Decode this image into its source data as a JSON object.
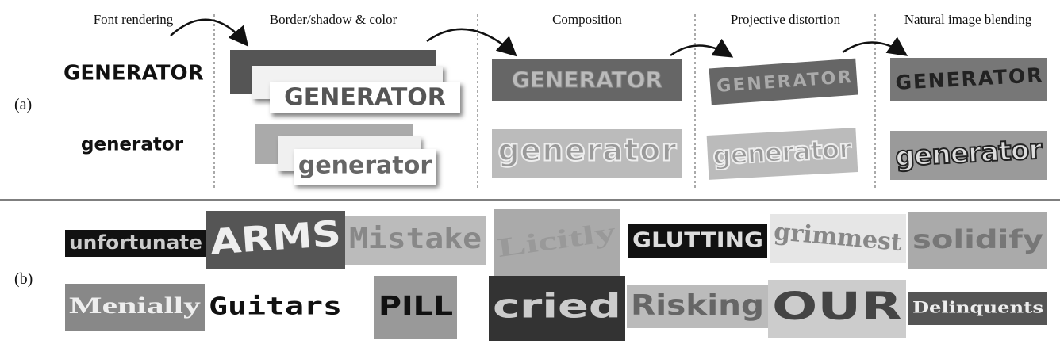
{
  "panel_a": {
    "label": "(a)",
    "stages": [
      "Font rendering",
      "Border/shadow & color",
      "Composition",
      "Projective distortion",
      "Natural image blending"
    ],
    "words": [
      "GENERATOR",
      "generator"
    ]
  },
  "panel_b": {
    "label": "(b)",
    "row1": [
      "unfortunate",
      "ARMS",
      "Mistake",
      "Licitly",
      "GLUTTING",
      "grimmest",
      "solidify"
    ],
    "row2": [
      "Menially",
      "Guitars",
      "PILL",
      "cried",
      "Risking",
      "OUR",
      "Delinquents"
    ]
  }
}
